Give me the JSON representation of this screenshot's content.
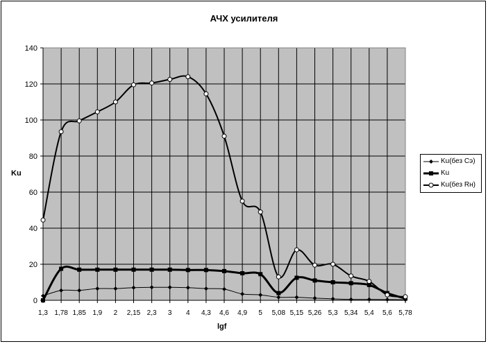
{
  "chart_data": {
    "type": "line",
    "title": "АЧХ усилителя",
    "xlabel": "lgf",
    "ylabel": "Ku",
    "ylim": [
      0,
      140
    ],
    "yticks": [
      "0",
      "20",
      "40",
      "60",
      "80",
      "100",
      "120",
      "140"
    ],
    "grid": true,
    "legend_position": "right",
    "categories": [
      "1,3",
      "1,78",
      "1,85",
      "1,9",
      "2",
      "2,15",
      "2,3",
      "3",
      "4",
      "4,3",
      "4,6",
      "4,9",
      "5",
      "5,08",
      "5,15",
      "5,26",
      "5,3",
      "5,34",
      "5,4",
      "5,6",
      "5,78"
    ],
    "series": [
      {
        "name": "Ku(без Сэ)",
        "marker": "diamond",
        "width": 1,
        "values": [
          2.5,
          5.5,
          5.5,
          6.5,
          6.5,
          7,
          7.2,
          7.2,
          7,
          6.5,
          6.2,
          3.5,
          3,
          1.7,
          1.7,
          1.2,
          0.8,
          0.5,
          0.5,
          0.4,
          0.3
        ]
      },
      {
        "name": "Ku",
        "marker": "square",
        "width": 3,
        "values": [
          0,
          17.5,
          17,
          17,
          17,
          17,
          17,
          17,
          16.8,
          16.8,
          16.2,
          15,
          14.5,
          4,
          12.5,
          11,
          10,
          9.5,
          8.5,
          4,
          1
        ]
      },
      {
        "name": "Ku(без Rн)",
        "marker": "circle",
        "width": 2,
        "values": [
          44.5,
          93.5,
          99.5,
          104.5,
          110,
          119.5,
          120.5,
          122.5,
          124,
          114.5,
          91,
          55,
          49,
          13,
          28,
          19.5,
          20,
          13.5,
          10.5,
          3,
          2
        ]
      }
    ]
  }
}
